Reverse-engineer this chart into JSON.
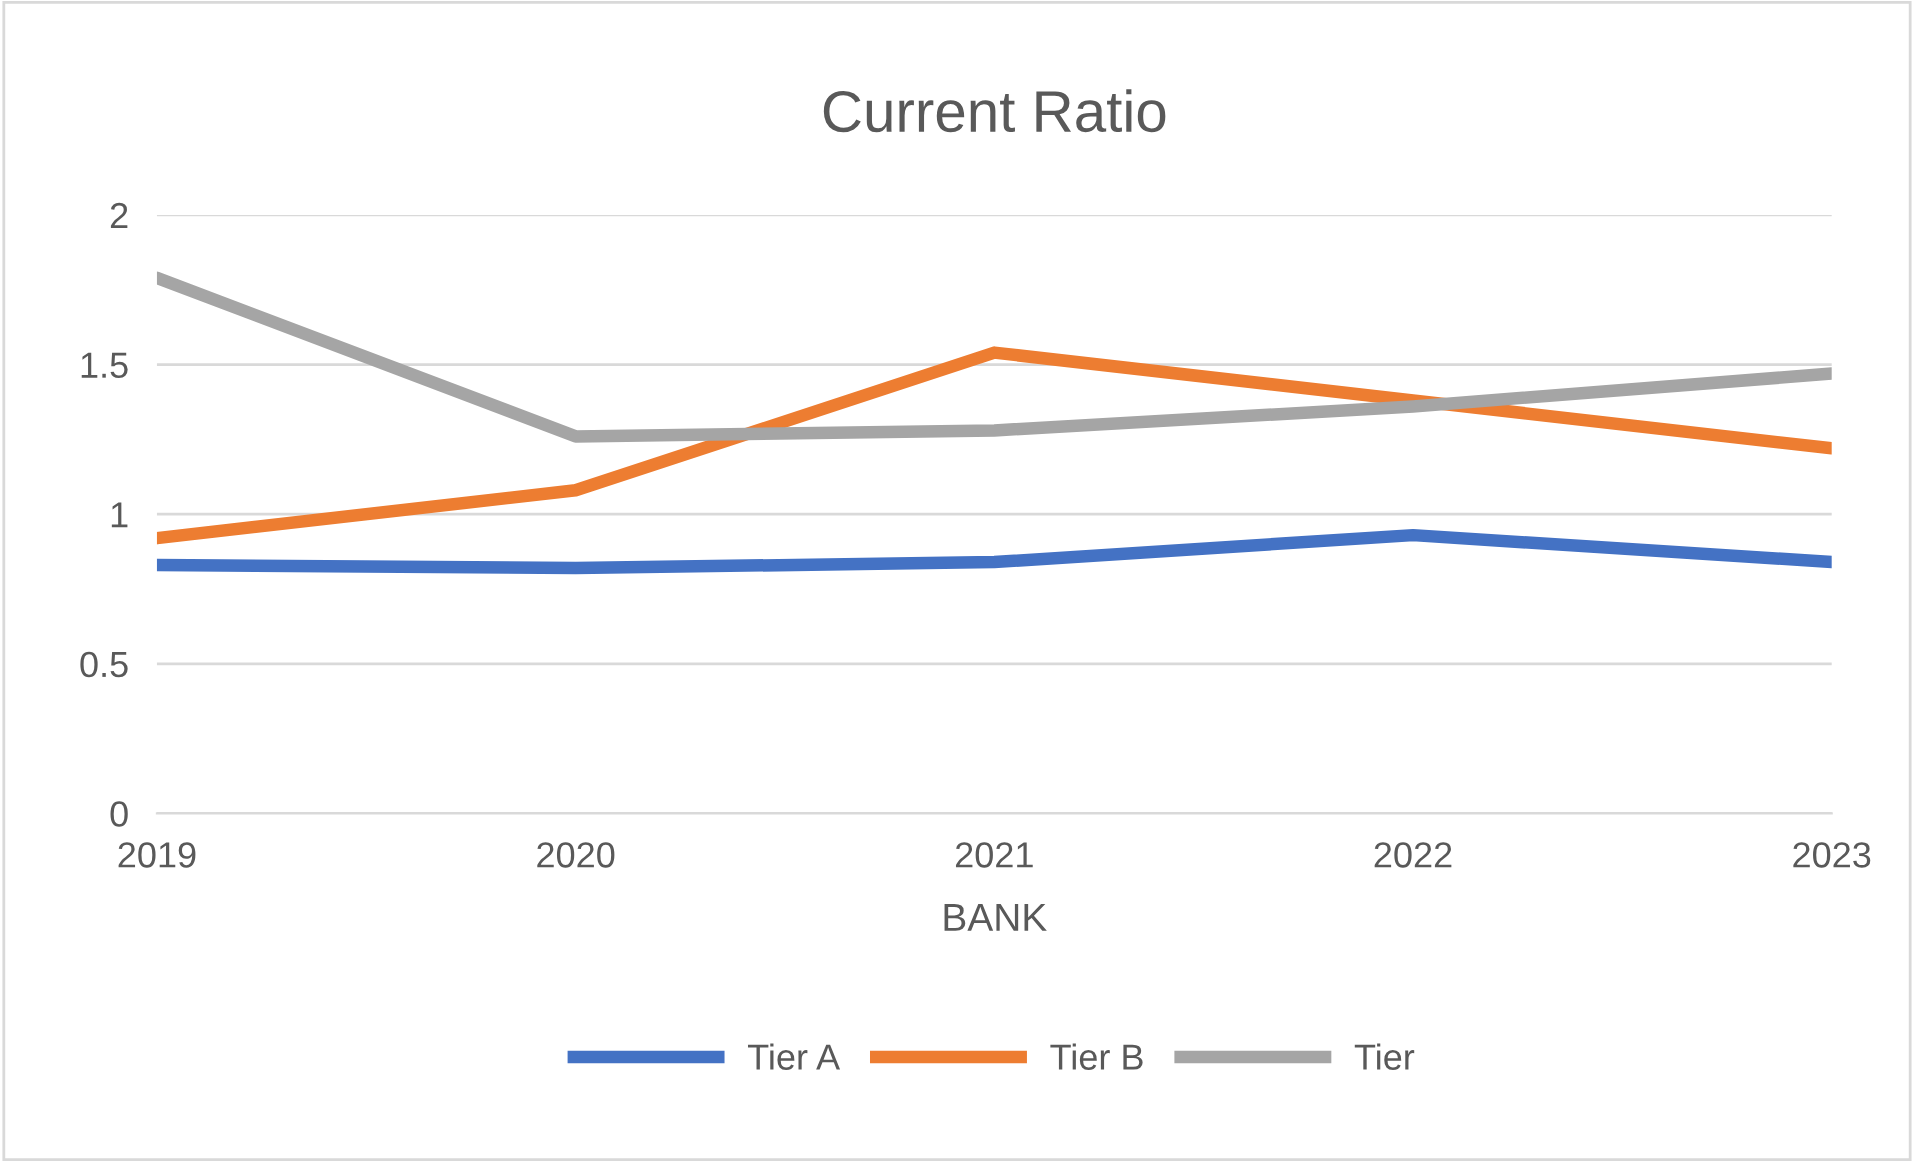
{
  "chart_data": {
    "type": "line",
    "title": "Current Ratio",
    "xlabel": "BANK",
    "categories": [
      "2019",
      "2020",
      "2021",
      "2022",
      "2023"
    ],
    "series": [
      {
        "name": "Tier A",
        "color": "#4472c4",
        "values": [
          0.83,
          0.82,
          0.84,
          0.93,
          0.84
        ]
      },
      {
        "name": "Tier B",
        "color": "#ed7d31",
        "values": [
          0.92,
          1.08,
          1.54,
          1.38,
          1.22
        ]
      },
      {
        "name": "Tier",
        "color": "#a5a5a5",
        "values": [
          1.79,
          1.26,
          1.28,
          1.36,
          1.47
        ]
      }
    ],
    "ylim": [
      0,
      2
    ],
    "yticks": [
      0,
      0.5,
      1,
      1.5,
      2
    ],
    "grid": "y",
    "legend": "bottom",
    "marker": "none",
    "line_style": "solid"
  }
}
